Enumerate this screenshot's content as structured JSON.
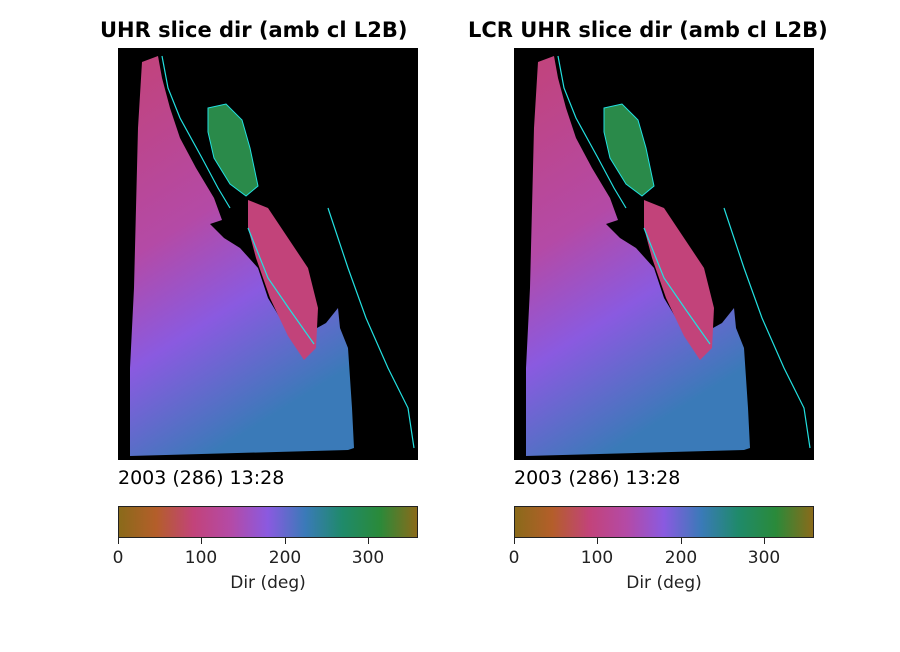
{
  "chart_data": [
    {
      "type": "heatmap",
      "title": "UHR slice dir (amb cl L2B)",
      "timestamp": "2003 (286) 13:28",
      "colorbar": {
        "label": "Dir (deg)",
        "range": [
          0,
          360
        ],
        "ticks": [
          0,
          100,
          200,
          300
        ],
        "colormap_stops": [
          "#8a6a1a",
          "#b45e2a",
          "#c2437a",
          "#b44aa6",
          "#8a5ae0",
          "#3a7ab8",
          "#1f8a6a",
          "#2a8a3a",
          "#8a6a1a"
        ]
      },
      "coastline_color": "#22e0e0"
    },
    {
      "type": "heatmap",
      "title": "LCR UHR slice dir (amb cl L2B)",
      "timestamp": "2003 (286) 13:28",
      "colorbar": {
        "label": "Dir (deg)",
        "range": [
          0,
          360
        ],
        "ticks": [
          0,
          100,
          200,
          300
        ],
        "colormap_stops": [
          "#8a6a1a",
          "#b45e2a",
          "#c2437a",
          "#b44aa6",
          "#8a5ae0",
          "#3a7ab8",
          "#1f8a6a",
          "#2a8a3a",
          "#8a6a1a"
        ]
      },
      "coastline_color": "#22e0e0"
    }
  ]
}
